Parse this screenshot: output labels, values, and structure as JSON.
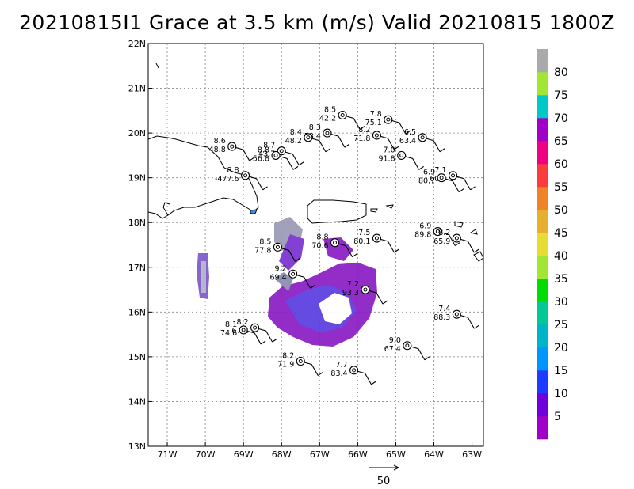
{
  "title": "20210815I1 Grace at 3.5 km (m/s) Valid 20210815 1800Z",
  "map": {
    "lon_range": [
      -71.5,
      -62.7
    ],
    "lat_range": [
      13,
      22
    ],
    "lon_ticks": [
      {
        "v": -71,
        "label": "71W"
      },
      {
        "v": -70,
        "label": "70W"
      },
      {
        "v": -69,
        "label": "69W"
      },
      {
        "v": -68,
        "label": "68W"
      },
      {
        "v": -67,
        "label": "67W"
      },
      {
        "v": -66,
        "label": "66W"
      },
      {
        "v": -65,
        "label": "65W"
      },
      {
        "v": -64,
        "label": "64W"
      },
      {
        "v": -63,
        "label": "63W"
      }
    ],
    "lat_ticks": [
      {
        "v": 13,
        "label": "13N"
      },
      {
        "v": 14,
        "label": "14N"
      },
      {
        "v": 15,
        "label": "15N"
      },
      {
        "v": 16,
        "label": "16N"
      },
      {
        "v": 17,
        "label": "17N"
      },
      {
        "v": 18,
        "label": "18N"
      },
      {
        "v": 19,
        "label": "19N"
      },
      {
        "v": 20,
        "label": "20N"
      },
      {
        "v": 21,
        "label": "21N"
      },
      {
        "v": 22,
        "label": "22N"
      }
    ],
    "grid": true
  },
  "colorbar": {
    "labels": [
      "5",
      "10",
      "15",
      "20",
      "25",
      "30",
      "35",
      "40",
      "45",
      "50",
      "55",
      "60",
      "65",
      "70",
      "75",
      "80"
    ],
    "colors": [
      "#a000c8",
      "#6e00dc",
      "#1e3cff",
      "#0096ff",
      "#00b4c8",
      "#00c896",
      "#00dc00",
      "#a0e632",
      "#e6dc32",
      "#e6af2d",
      "#f08228",
      "#fa3c3c",
      "#f00082",
      "#a000c8",
      "#00c8c8",
      "#a0e632",
      "#aaaaaa"
    ]
  },
  "reference_vector": {
    "label": "50"
  },
  "stations": [
    {
      "lon": -66.4,
      "lat": 20.4,
      "v1": "8.5",
      "v2": "42.2"
    },
    {
      "lon": -65.2,
      "lat": 20.3,
      "v1": "7.8",
      "v2": "75.1"
    },
    {
      "lon": -65.5,
      "lat": 19.95,
      "v1": "8.2",
      "v2": "71.8"
    },
    {
      "lon": -64.3,
      "lat": 19.9,
      "v1": "6.5",
      "v2": "63.4"
    },
    {
      "lon": -66.8,
      "lat": 20.0,
      "v1": "8.3",
      "v2": "58.4"
    },
    {
      "lon": -67.3,
      "lat": 19.9,
      "v1": "8.4",
      "v2": "48.2"
    },
    {
      "lon": -69.3,
      "lat": 19.7,
      "v1": "8.6",
      "v2": "48.8"
    },
    {
      "lon": -68.0,
      "lat": 19.6,
      "v1": "8.7",
      "v2": "43.7"
    },
    {
      "lon": -68.15,
      "lat": 19.5,
      "v1": "8.8",
      "v2": "56.8"
    },
    {
      "lon": -64.85,
      "lat": 19.5,
      "v1": "7.0",
      "v2": "91.8"
    },
    {
      "lon": -68.95,
      "lat": 19.05,
      "v1": "8.8",
      "v2": "-477.6"
    },
    {
      "lon": -63.5,
      "lat": 19.05,
      "v1": "7.1",
      "v2": "60.5"
    },
    {
      "lon": -63.8,
      "lat": 19.0,
      "v1": "6.9",
      "v2": "80.7"
    },
    {
      "lon": -63.9,
      "lat": 17.8,
      "v1": "6.9",
      "v2": "89.8"
    },
    {
      "lon": -63.4,
      "lat": 17.65,
      "v1": "8.2",
      "v2": "65.9"
    },
    {
      "lon": -65.5,
      "lat": 17.65,
      "v1": "7.5",
      "v2": "80.1"
    },
    {
      "lon": -66.6,
      "lat": 17.55,
      "v1": "8.8",
      "v2": "70.6"
    },
    {
      "lon": -68.1,
      "lat": 17.45,
      "v1": "8.5",
      "v2": "77.8"
    },
    {
      "lon": -67.7,
      "lat": 16.85,
      "v1": "9.2",
      "v2": "69.4"
    },
    {
      "lon": -65.8,
      "lat": 16.5,
      "v1": "7.2",
      "v2": "93.3"
    },
    {
      "lon": -63.4,
      "lat": 15.95,
      "v1": "7.4",
      "v2": "88.3"
    },
    {
      "lon": -68.7,
      "lat": 15.65,
      "v1": "8.2",
      "v2": "67.2"
    },
    {
      "lon": -69.0,
      "lat": 15.6,
      "v1": "8.1",
      "v2": "74.6"
    },
    {
      "lon": -64.7,
      "lat": 15.25,
      "v1": "9.0",
      "v2": "67.4"
    },
    {
      "lon": -67.5,
      "lat": 14.9,
      "v1": "8.2",
      "v2": "71.9"
    },
    {
      "lon": -66.1,
      "lat": 14.7,
      "v1": "7.7",
      "v2": "83.4"
    }
  ]
}
